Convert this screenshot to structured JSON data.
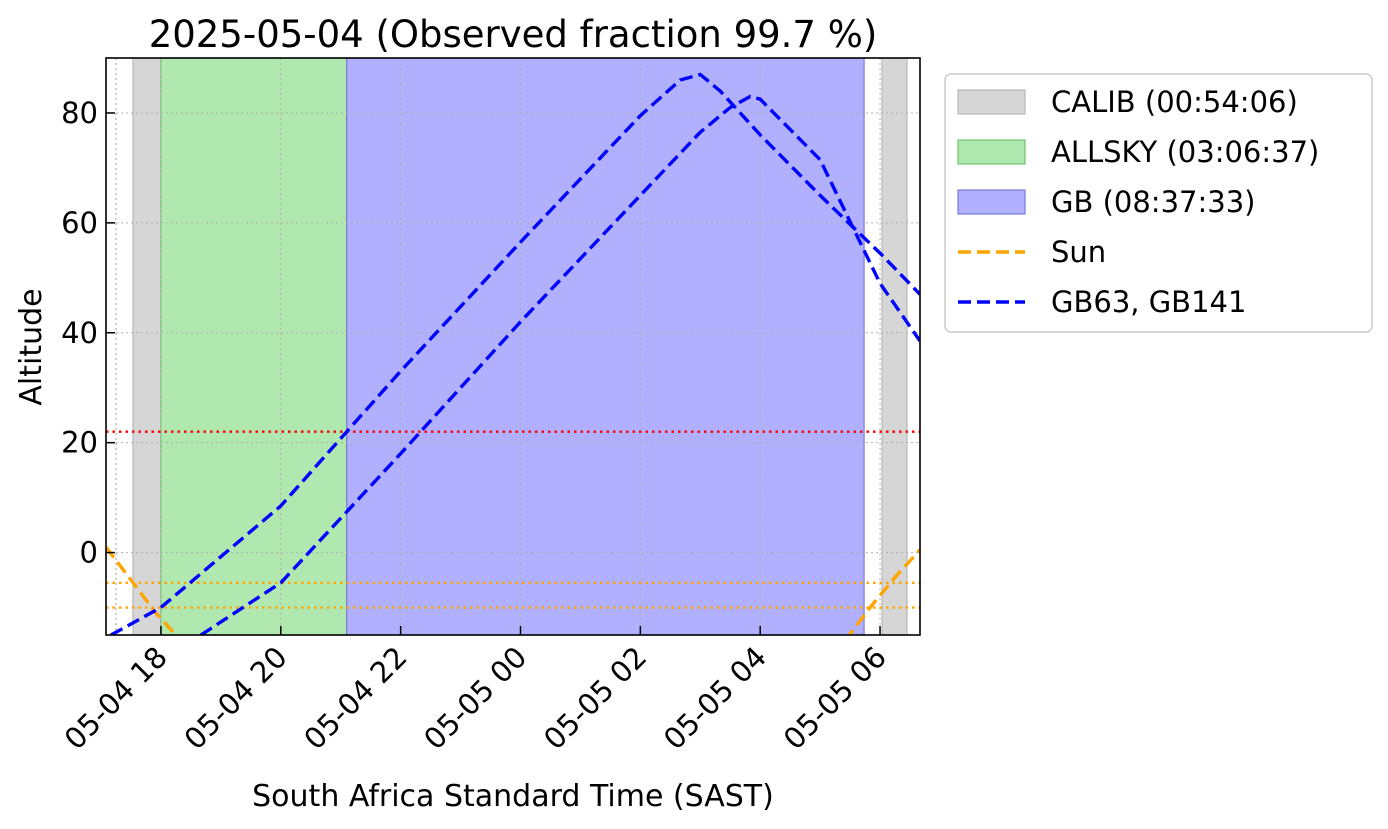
{
  "chart_data": {
    "type": "line",
    "title": "2025-05-04 (Observed fraction 99.7 %)",
    "xlabel": "South Africa Standard Time (SAST)",
    "ylabel": "Altitude",
    "xlim": [
      "2025-05-04 17:05",
      "2025-05-05 06:40"
    ],
    "ylim": [
      -15,
      90
    ],
    "grid": true,
    "legend_position": "outside-right",
    "x_tick_labels": [
      "05-04 18",
      "05-04 20",
      "05-04 22",
      "05-05 00",
      "05-05 02",
      "05-05 04",
      "05-05 06"
    ],
    "x_ticks": [
      "2025-05-04 18:00",
      "2025-05-04 20:00",
      "2025-05-04 22:00",
      "2025-05-05 00:00",
      "2025-05-05 02:00",
      "2025-05-05 04:00",
      "2025-05-05 06:00"
    ],
    "y_ticks": [
      0,
      20,
      40,
      60,
      80
    ],
    "bands": [
      {
        "name": "CALIB",
        "duration": "00:54:06",
        "color": "#d6d6d6",
        "edge": "#b8b8b8",
        "intervals": [
          [
            "2025-05-04 17:32",
            "2025-05-04 18:00"
          ],
          [
            "2025-05-05 06:02",
            "2025-05-05 06:27"
          ]
        ]
      },
      {
        "name": "ALLSKY",
        "duration": "03:06:37",
        "color": "#b0e8b0",
        "edge": "#6ec36e",
        "intervals": [
          [
            "2025-05-04 18:00",
            "2025-05-04 21:06"
          ]
        ]
      },
      {
        "name": "GB",
        "duration": "08:37:33",
        "color": "#b0b0ff",
        "edge": "#7a7ad8",
        "intervals": [
          [
            "2025-05-04 21:06",
            "2025-05-05 05:44"
          ]
        ]
      }
    ],
    "legend_entries": [
      "CALIB (00:54:06)",
      "ALLSKY (03:06:37)",
      "GB (08:37:33)",
      "Sun",
      "GB63, GB141"
    ],
    "hlines": [
      {
        "y": 22,
        "color": "#ff0000",
        "style": "dotted"
      },
      {
        "y": -5.5,
        "color": "#ffa500",
        "style": "dotted"
      },
      {
        "y": -10,
        "color": "#ffa500",
        "style": "dotted"
      }
    ],
    "vlines": [
      {
        "x": "2025-05-04 17:15",
        "color": "#b0b0b0",
        "style": "dotted"
      }
    ],
    "series": [
      {
        "name": "Sun",
        "color": "#ffa500",
        "style": "dashed",
        "segments": [
          {
            "x": [
              "2025-05-04 17:05",
              "2025-05-04 17:30",
              "2025-05-04 17:55",
              "2025-05-04 18:20"
            ],
            "y": [
              1,
              -5,
              -11,
              -16
            ]
          },
          {
            "x": [
              "2025-05-05 05:25",
              "2025-05-05 05:50",
              "2025-05-05 06:15",
              "2025-05-05 06:40"
            ],
            "y": [
              -16,
              -10,
              -4.5,
              0.5
            ]
          }
        ]
      },
      {
        "name": "GB63, GB141",
        "color": "#0000ff",
        "style": "dashed",
        "segments": [
          {
            "x": [
              "2025-05-04 17:10",
              "2025-05-04 18:00",
              "2025-05-04 20:00",
              "2025-05-04 21:06",
              "2025-05-04 22:00",
              "2025-05-05 00:00",
              "2025-05-05 02:00",
              "2025-05-05 02:40",
              "2025-05-05 03:00",
              "2025-05-05 03:20",
              "2025-05-05 04:00",
              "2025-05-05 05:00",
              "2025-05-05 06:00",
              "2025-05-05 06:40"
            ],
            "y": [
              -15,
              -10,
              8.5,
              22,
              33,
              56.5,
              79.5,
              86,
              87,
              84,
              76,
              65,
              54.5,
              47
            ]
          },
          {
            "x": [
              "2025-05-04 18:40",
              "2025-05-04 20:00",
              "2025-05-04 22:00",
              "2025-05-05 00:00",
              "2025-05-05 02:00",
              "2025-05-05 03:00",
              "2025-05-05 03:30",
              "2025-05-05 03:50",
              "2025-05-05 04:00",
              "2025-05-05 05:00",
              "2025-05-05 06:00",
              "2025-05-05 06:40"
            ],
            "y": [
              -15,
              -5.5,
              18,
              42,
              65,
              76.5,
              81,
              83,
              82.5,
              71.5,
              49,
              38.5
            ]
          }
        ]
      }
    ]
  }
}
